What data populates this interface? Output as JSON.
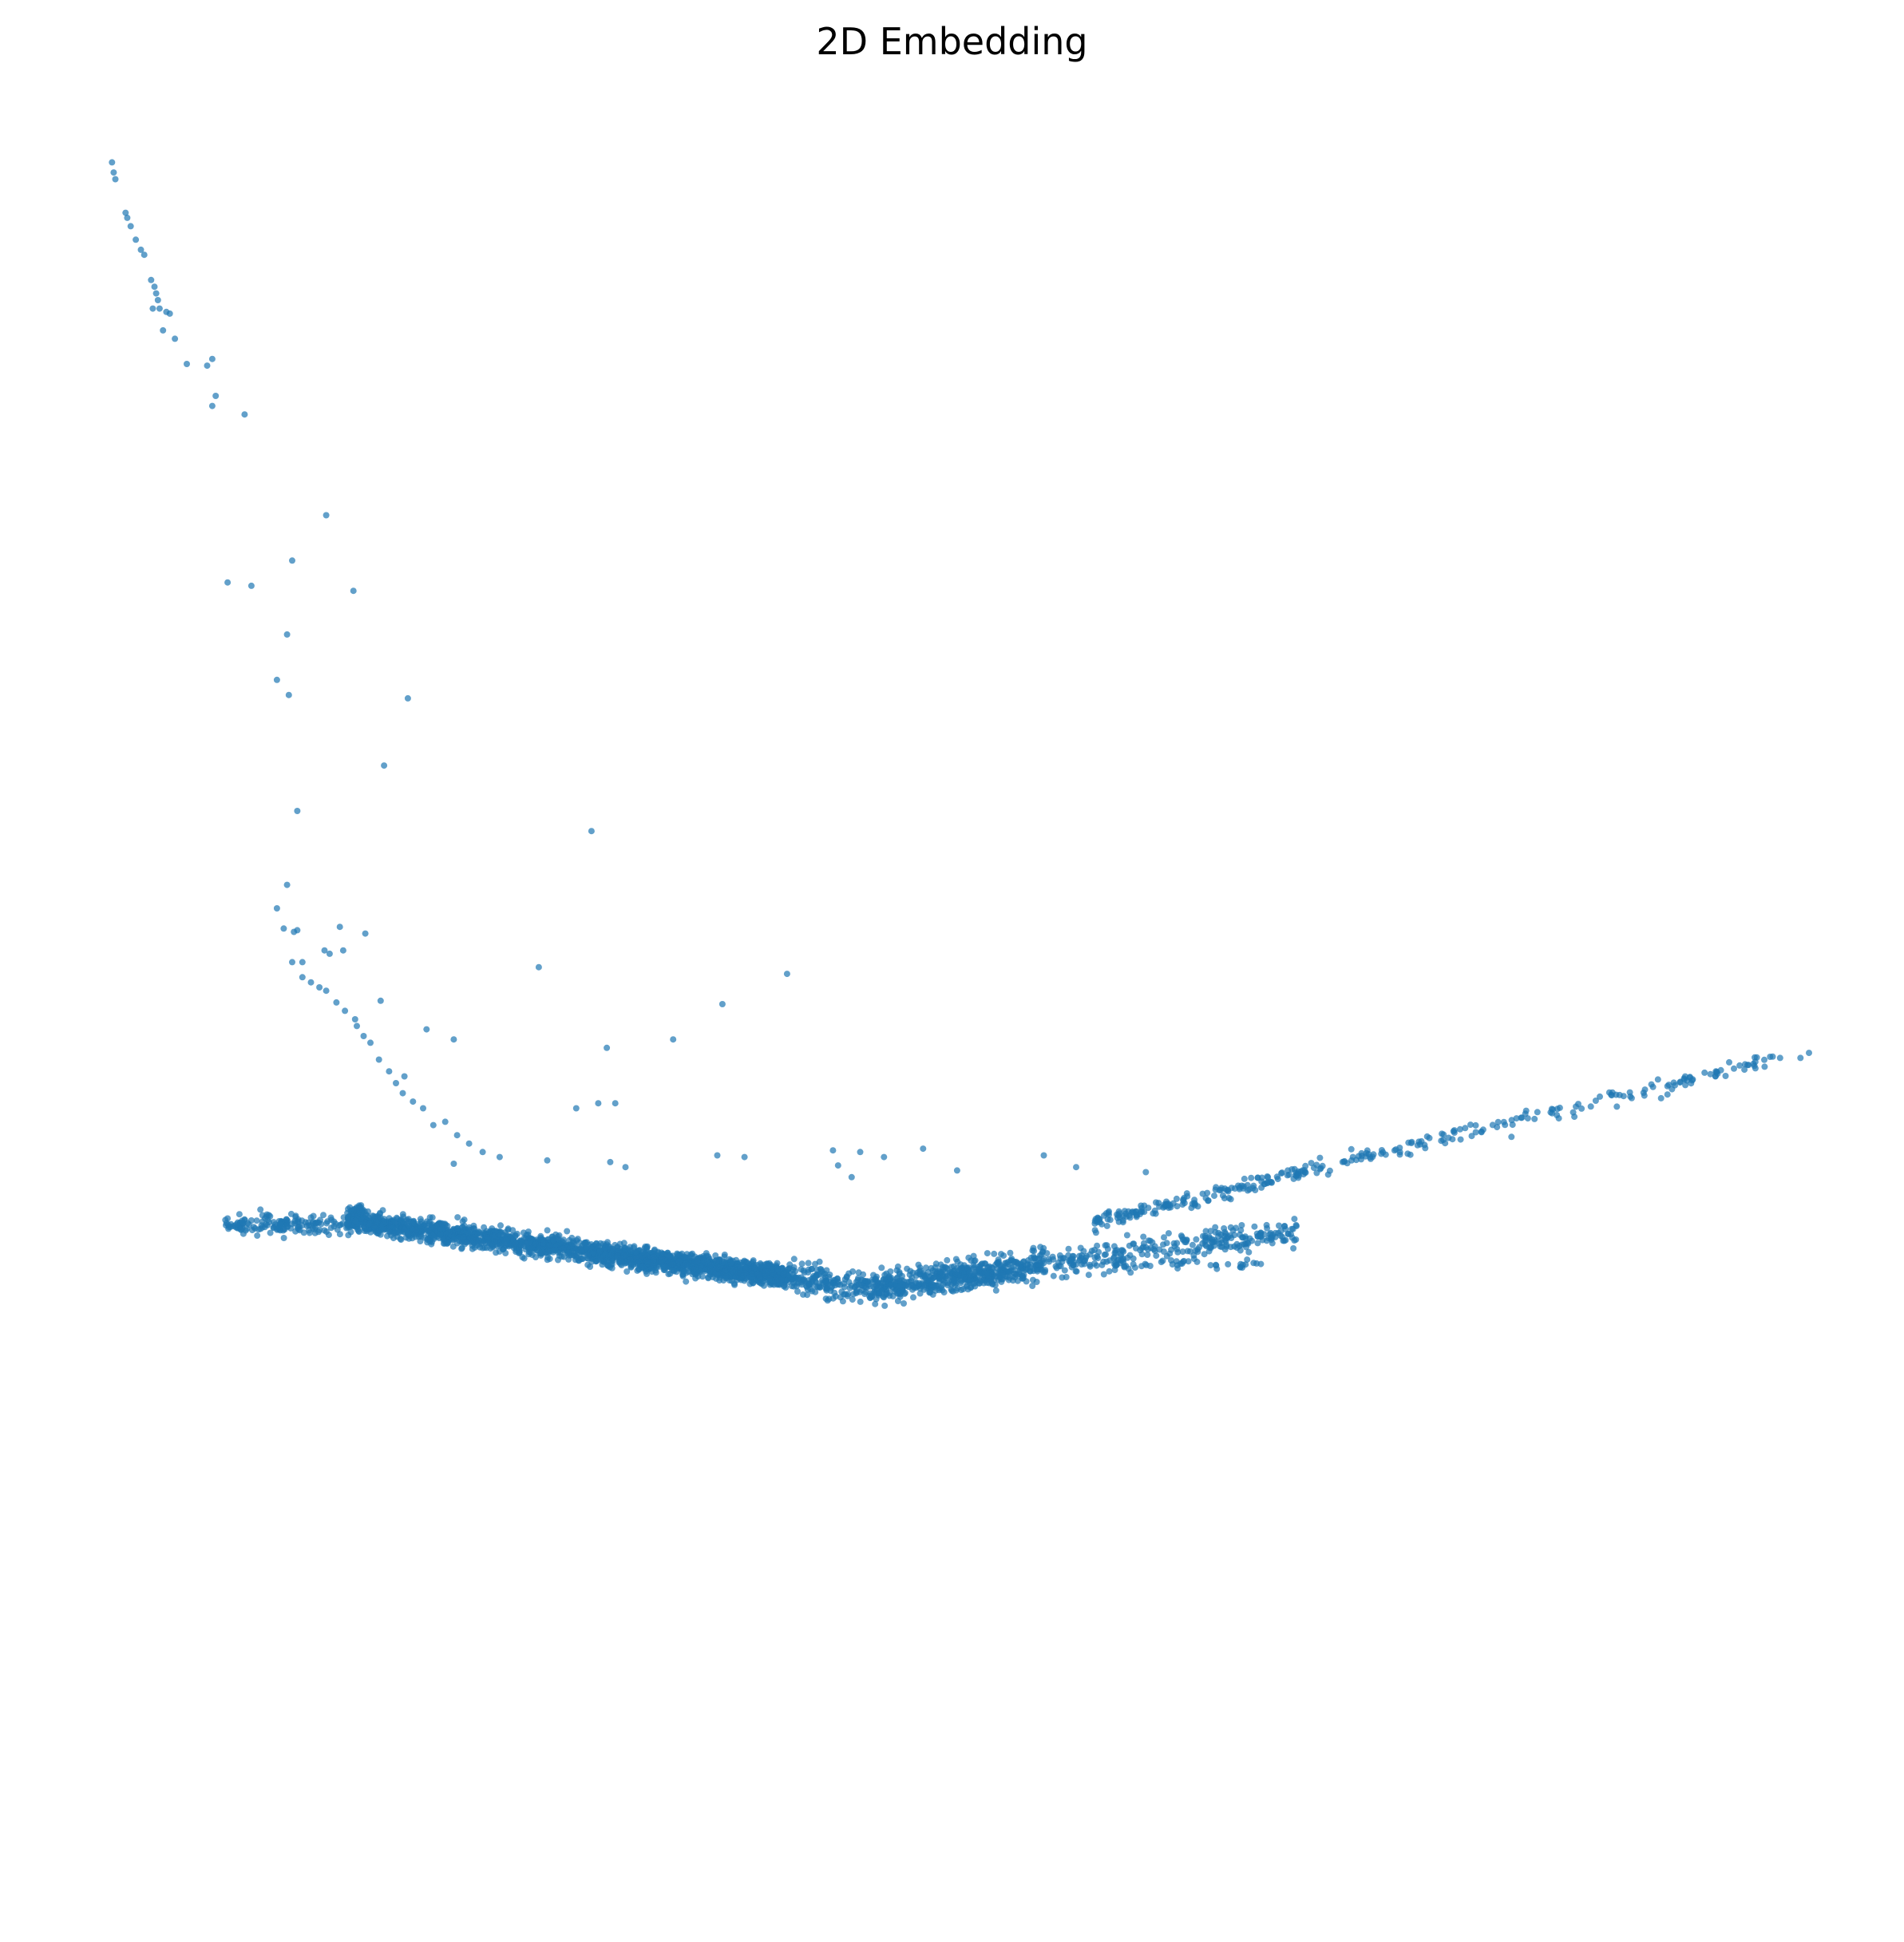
{
  "chart_data": {
    "type": "scatter",
    "title": "2D Embedding",
    "xlabel": "",
    "ylabel": "",
    "axes_visible": false,
    "grid": false,
    "legend": "none",
    "marker_color": "#1f77b4",
    "marker_alpha": 0.7,
    "xlim": [
      0,
      100
    ],
    "ylim": [
      0,
      100
    ],
    "series": [
      {
        "points": [
          [
            0.2,
            99.6
          ],
          [
            0.3,
            99.0
          ],
          [
            0.4,
            98.6
          ],
          [
            1.0,
            96.6
          ],
          [
            1.1,
            96.3
          ],
          [
            1.3,
            95.8
          ],
          [
            1.6,
            95.0
          ],
          [
            1.9,
            94.4
          ],
          [
            2.1,
            94.1
          ],
          [
            2.5,
            92.6
          ],
          [
            2.7,
            92.2
          ],
          [
            2.8,
            91.8
          ],
          [
            2.9,
            91.4
          ],
          [
            2.6,
            90.9
          ],
          [
            3.0,
            90.9
          ],
          [
            3.4,
            90.7
          ],
          [
            3.6,
            90.6
          ],
          [
            3.2,
            89.6
          ],
          [
            3.9,
            89.1
          ],
          [
            4.6,
            87.6
          ],
          [
            5.8,
            87.5
          ],
          [
            6.1,
            87.9
          ],
          [
            6.3,
            85.7
          ],
          [
            6.1,
            85.1
          ],
          [
            8.0,
            84.6
          ],
          [
            12.8,
            78.6
          ],
          [
            10.8,
            75.9
          ],
          [
            7.0,
            74.6
          ],
          [
            8.4,
            74.4
          ],
          [
            14.4,
            74.1
          ],
          [
            10.5,
            71.5
          ],
          [
            9.9,
            68.8
          ],
          [
            10.6,
            67.9
          ],
          [
            17.6,
            67.7
          ],
          [
            16.2,
            63.7
          ],
          [
            11.1,
            61.0
          ],
          [
            28.4,
            59.8
          ],
          [
            10.5,
            56.6
          ],
          [
            9.9,
            55.2
          ],
          [
            10.3,
            54.0
          ],
          [
            10.9,
            53.8
          ],
          [
            11.1,
            53.9
          ],
          [
            13.6,
            54.1
          ],
          [
            15.1,
            53.7
          ],
          [
            12.7,
            52.7
          ],
          [
            13.0,
            52.5
          ],
          [
            13.8,
            52.7
          ],
          [
            10.8,
            52.0
          ],
          [
            11.4,
            52.0
          ],
          [
            25.3,
            51.7
          ],
          [
            39.9,
            51.3
          ],
          [
            11.4,
            51.1
          ],
          [
            11.9,
            50.8
          ],
          [
            12.4,
            50.5
          ],
          [
            12.8,
            50.3
          ],
          [
            13.4,
            49.6
          ],
          [
            13.9,
            49.1
          ],
          [
            14.5,
            48.6
          ],
          [
            16.0,
            49.7
          ],
          [
            36.1,
            49.5
          ],
          [
            14.6,
            48.2
          ],
          [
            15.0,
            47.6
          ],
          [
            15.4,
            47.2
          ],
          [
            18.7,
            48.0
          ],
          [
            20.3,
            47.4
          ],
          [
            33.2,
            47.4
          ],
          [
            29.3,
            46.9
          ],
          [
            15.9,
            46.2
          ],
          [
            16.5,
            45.5
          ],
          [
            17.4,
            45.2
          ],
          [
            16.9,
            44.8
          ],
          [
            17.3,
            44.2
          ],
          [
            17.9,
            43.7
          ],
          [
            18.5,
            43.3
          ],
          [
            19.1,
            42.3
          ],
          [
            28.8,
            43.6
          ],
          [
            29.8,
            43.6
          ],
          [
            27.5,
            43.3
          ],
          [
            19.8,
            42.5
          ],
          [
            20.5,
            41.7
          ],
          [
            21.2,
            41.2
          ],
          [
            22.0,
            40.7
          ],
          [
            23.0,
            40.4
          ],
          [
            25.8,
            40.2
          ],
          [
            29.5,
            40.1
          ],
          [
            20.3,
            40.0
          ],
          [
            30.4,
            39.8
          ],
          [
            35.8,
            40.5
          ],
          [
            37.4,
            40.4
          ],
          [
            42.6,
            40.8
          ],
          [
            44.2,
            40.7
          ],
          [
            45.6,
            40.4
          ],
          [
            47.9,
            40.9
          ],
          [
            42.9,
            39.9
          ],
          [
            55.0,
            40.5
          ],
          [
            49.9,
            39.6
          ],
          [
            56.9,
            39.8
          ],
          [
            43.7,
            39.2
          ],
          [
            61.0,
            39.5
          ],
          [
            66.8,
            39.1
          ],
          [
            70.0,
            39.3
          ],
          [
            73.1,
            40.2
          ],
          [
            76.4,
            40.6
          ],
          [
            82.5,
            41.6
          ],
          [
            86.2,
            42.8
          ],
          [
            88.7,
            43.4
          ],
          [
            91.3,
            43.9
          ],
          [
            94.5,
            45.2
          ],
          [
            96.2,
            45.6
          ],
          [
            98.3,
            46.3
          ],
          [
            100.0,
            46.6
          ],
          [
            99.5,
            46.3
          ]
        ]
      }
    ]
  }
}
